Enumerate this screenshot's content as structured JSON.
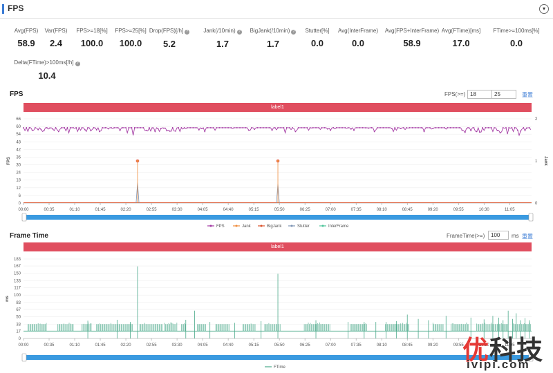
{
  "header": {
    "title": "FPS",
    "collapse_glyph": "▾"
  },
  "metrics": [
    {
      "label": "Avg(FPS)",
      "value": "58.9",
      "help": false
    },
    {
      "label": "Var(FPS)",
      "value": "2.4",
      "help": false
    },
    {
      "label": "FPS>=18[%]",
      "value": "100.0",
      "help": false
    },
    {
      "label": "FPS>=25[%]",
      "value": "100.0",
      "help": false
    },
    {
      "label": "Drop(FPS)[/h]",
      "value": "5.2",
      "help": true
    },
    {
      "label": "Jank(/10min)",
      "value": "1.7",
      "help": true
    },
    {
      "label": "BigJank(/10min)",
      "value": "1.7",
      "help": true
    },
    {
      "label": "Stutter[%]",
      "value": "0.0",
      "help": false
    },
    {
      "label": "Avg(InterFrame)",
      "value": "0.0",
      "help": false
    },
    {
      "label": "Avg(FPS+InterFrame)",
      "value": "58.9",
      "help": false
    },
    {
      "label": "Avg(FTime)[ms]",
      "value": "17.0",
      "help": false
    },
    {
      "label": "FTime>=100ms[%]",
      "value": "0.0",
      "help": false
    },
    {
      "label": "Delta(FTime)>100ms[/h]",
      "value": "10.4",
      "help": true
    }
  ],
  "fps_section": {
    "title": "FPS",
    "control_label": "FPS(>=)",
    "input1": "18",
    "input2": "25",
    "reset": "重置",
    "label_bar": "label1"
  },
  "frame_section": {
    "title": "Frame Time",
    "control_label": "FrameTime(>=)",
    "input1": "100",
    "unit": "ms",
    "reset": "重置",
    "label_bar": "label1"
  },
  "watermark": {
    "cn_left": "优",
    "cn_right": "科技",
    "en": "ivipi.com"
  },
  "chart_data": [
    {
      "type": "line",
      "title": "FPS",
      "ylabel": "FPS",
      "y2label": "Jank",
      "ylim": [
        0,
        66
      ],
      "y2lim": [
        0,
        2
      ],
      "yticks": [
        0,
        6,
        12,
        18,
        24,
        30,
        36,
        42,
        48,
        54,
        60,
        66
      ],
      "y2ticks": [
        0,
        1,
        2
      ],
      "x_ticks": [
        "00:00",
        "00:35",
        "01:10",
        "01:45",
        "02:20",
        "02:55",
        "03:30",
        "04:05",
        "04:40",
        "05:15",
        "05:50",
        "06:25",
        "07:00",
        "07:35",
        "08:10",
        "08:45",
        "09:20",
        "09:55",
        "10:30",
        "11:05"
      ],
      "xlim_seconds": [
        0,
        695
      ],
      "legend": [
        {
          "name": "FPS",
          "color": "#a43ba4"
        },
        {
          "name": "Jank",
          "color": "#ef8d3c"
        },
        {
          "name": "BigJank",
          "color": "#d9532c"
        },
        {
          "name": "Stutter",
          "color": "#7f95b5"
        },
        {
          "name": "InterFrame",
          "color": "#4fc49b"
        }
      ],
      "legend_position": "bottom",
      "fps_baseline": 59,
      "fps_dips": [
        [
          12,
          57
        ],
        [
          25,
          55
        ],
        [
          33,
          54
        ],
        [
          48,
          56
        ],
        [
          62,
          55
        ],
        [
          78,
          57
        ],
        [
          91,
          55
        ],
        [
          104,
          56
        ],
        [
          117,
          54
        ],
        [
          133,
          56
        ],
        [
          142,
          55
        ],
        [
          150,
          53
        ],
        [
          159,
          52
        ],
        [
          168,
          57
        ],
        [
          180,
          56
        ],
        [
          195,
          57
        ],
        [
          214,
          56
        ],
        [
          225,
          57
        ],
        [
          248,
          56
        ],
        [
          262,
          57
        ],
        [
          285,
          56
        ],
        [
          310,
          57
        ],
        [
          340,
          57
        ],
        [
          358,
          55
        ],
        [
          372,
          56
        ],
        [
          390,
          57
        ],
        [
          420,
          57
        ],
        [
          452,
          57
        ],
        [
          480,
          56
        ],
        [
          506,
          56
        ],
        [
          525,
          55
        ],
        [
          548,
          56
        ],
        [
          575,
          56
        ],
        [
          600,
          57
        ],
        [
          620,
          56
        ],
        [
          642,
          56
        ],
        [
          652,
          55
        ],
        [
          662,
          54
        ],
        [
          670,
          56
        ],
        [
          678,
          53
        ],
        [
          685,
          55
        ]
      ],
      "jank_events": [
        [
          156,
          1
        ],
        [
          348,
          1
        ]
      ],
      "stutter_spikes": [
        [
          156,
          16
        ],
        [
          348,
          15
        ]
      ]
    },
    {
      "type": "bar",
      "title": "Frame Time",
      "ylabel": "ms",
      "ylim": [
        0,
        183
      ],
      "yticks": [
        0,
        17,
        33,
        50,
        67,
        83,
        100,
        117,
        133,
        150,
        167,
        183
      ],
      "x_ticks": [
        "00:00",
        "00:35",
        "01:10",
        "01:45",
        "02:20",
        "02:55",
        "03:30",
        "04:05",
        "04:40",
        "05:15",
        "05:50",
        "06:25",
        "07:00",
        "07:35",
        "08:10",
        "08:45",
        "09:20",
        "09:55",
        "10:30",
        "11:05"
      ],
      "xlim_seconds": [
        0,
        695
      ],
      "legend": [
        {
          "name": "FTime",
          "color": "#4aa98a"
        }
      ],
      "legend_position": "bottom",
      "baseline": 17,
      "dense_ranges": [
        [
          6,
          32
        ],
        [
          47,
          69
        ],
        [
          80,
          93
        ],
        [
          100,
          150
        ],
        [
          159,
          190
        ],
        [
          193,
          210
        ],
        [
          216,
          223
        ],
        [
          238,
          250
        ],
        [
          263,
          282
        ],
        [
          300,
          318
        ],
        [
          330,
          352
        ],
        [
          384,
          419
        ],
        [
          447,
          470
        ],
        [
          495,
          528
        ],
        [
          560,
          575
        ],
        [
          585,
          610
        ],
        [
          620,
          662
        ],
        [
          670,
          695
        ]
      ],
      "spikes": [
        [
          88,
          41
        ],
        [
          128,
          43
        ],
        [
          146,
          38
        ],
        [
          156,
          166
        ],
        [
          222,
          43
        ],
        [
          234,
          64
        ],
        [
          255,
          38
        ],
        [
          289,
          36
        ],
        [
          325,
          40
        ],
        [
          348,
          149
        ],
        [
          400,
          42
        ],
        [
          444,
          38
        ],
        [
          466,
          38
        ],
        [
          482,
          38
        ],
        [
          496,
          38
        ],
        [
          510,
          40
        ],
        [
          525,
          55
        ],
        [
          540,
          45
        ],
        [
          554,
          42
        ],
        [
          578,
          52
        ],
        [
          612,
          48
        ],
        [
          630,
          44
        ],
        [
          642,
          52
        ],
        [
          650,
          48
        ],
        [
          656,
          42
        ],
        [
          663,
          64
        ],
        [
          669,
          45
        ],
        [
          674,
          58
        ],
        [
          680,
          42
        ],
        [
          686,
          47
        ],
        [
          692,
          42
        ]
      ]
    }
  ]
}
